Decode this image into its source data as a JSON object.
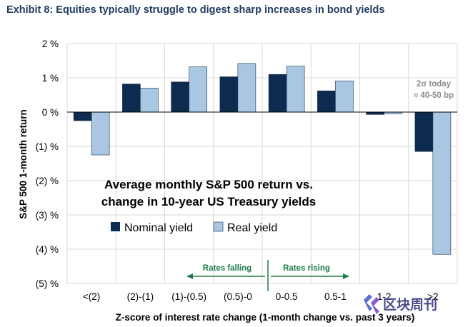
{
  "exhibit_title": "Exhibit 8: Equities typically struggle to digest sharp increases in bond yields",
  "chart_data": {
    "type": "bar",
    "title_line1": "Average monthly S&P 500 return vs.",
    "title_line2": "change in 10-year US Treasury yields",
    "xlabel": "Z-score of interest rate change (1-month change vs. past 3 years)",
    "ylabel": "S&P 500 1-month return",
    "categories": [
      "<(2)",
      "(2)-(1)",
      "(1)-(0.5)",
      "(0.5)-0",
      "0-0.5",
      "0.5-1",
      "1-2",
      ">2"
    ],
    "series": [
      {
        "name": "Nominal yield",
        "color": "#0d2b4e",
        "values": [
          -0.25,
          0.82,
          0.88,
          1.03,
          1.1,
          0.62,
          -0.07,
          -1.15
        ]
      },
      {
        "name": "Real yield",
        "color": "#a9c7e3",
        "values": [
          -1.25,
          0.7,
          1.32,
          1.42,
          1.34,
          0.91,
          -0.05,
          -4.15
        ]
      }
    ],
    "ylim": [
      -5,
      2
    ],
    "yticks": [
      {
        "value": 2,
        "label": "2 %"
      },
      {
        "value": 1,
        "label": "1 %"
      },
      {
        "value": 0,
        "label": "0 %"
      },
      {
        "value": -1,
        "label": "(1) %"
      },
      {
        "value": -2,
        "label": "(2) %"
      },
      {
        "value": -3,
        "label": "(3) %"
      },
      {
        "value": -4,
        "label": "(4) %"
      },
      {
        "value": -5,
        "label": "(5) %"
      }
    ],
    "grid": true,
    "legend": "center",
    "annotations": {
      "rates_falling": "Rates falling",
      "rates_rising": "Rates rising",
      "note_line1": "2σ today",
      "note_line2": "≈ 40-50 bp"
    }
  },
  "watermark": "区块周刊"
}
